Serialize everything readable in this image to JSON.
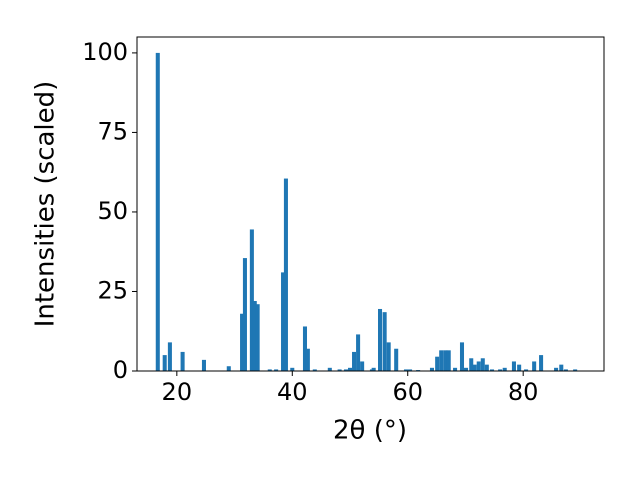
{
  "chart_data": {
    "type": "bar",
    "xlabel": "2θ (°)",
    "ylabel": "Intensities (scaled)",
    "color": "#1f77b4",
    "x": [
      16.7,
      17.9,
      18.8,
      21.0,
      24.7,
      29.0,
      31.3,
      31.8,
      33.0,
      33.5,
      34.0,
      36.1,
      37.2,
      38.4,
      38.9,
      40.0,
      42.2,
      42.7,
      43.9,
      46.5,
      48.2,
      49.3,
      50.0,
      50.7,
      51.4,
      52.1,
      53.8,
      54.1,
      55.2,
      56.0,
      56.7,
      58.0,
      59.7,
      60.4,
      61.8,
      64.2,
      65.1,
      65.8,
      66.5,
      67.1,
      68.2,
      69.4,
      70.1,
      71.0,
      71.6,
      72.3,
      73.0,
      73.7,
      74.6,
      76.0,
      76.8,
      78.4,
      79.3,
      80.5,
      81.9,
      83.1,
      85.7,
      86.6,
      87.4,
      89.0
    ],
    "values": [
      100,
      5,
      9,
      6,
      3.5,
      1.5,
      18,
      35.5,
      44.5,
      22,
      21,
      0.5,
      0.5,
      31,
      60.5,
      1,
      14,
      7,
      0.5,
      1,
      0.5,
      0.5,
      1,
      6,
      11.5,
      3,
      0.5,
      1,
      19.5,
      18.5,
      9,
      7,
      0.5,
      0.5,
      0.3,
      1,
      4.5,
      6.5,
      6.5,
      6.5,
      1,
      9,
      1,
      4,
      2,
      3,
      4,
      2,
      0.5,
      0.5,
      1,
      3,
      2,
      0.5,
      3,
      5,
      1,
      2,
      0.5,
      0.5
    ],
    "xlim": [
      13.1,
      94
    ],
    "ylim": [
      0,
      105
    ],
    "xticks": [
      20,
      40,
      60,
      80
    ],
    "yticks": [
      0,
      25,
      50,
      75,
      100
    ]
  }
}
